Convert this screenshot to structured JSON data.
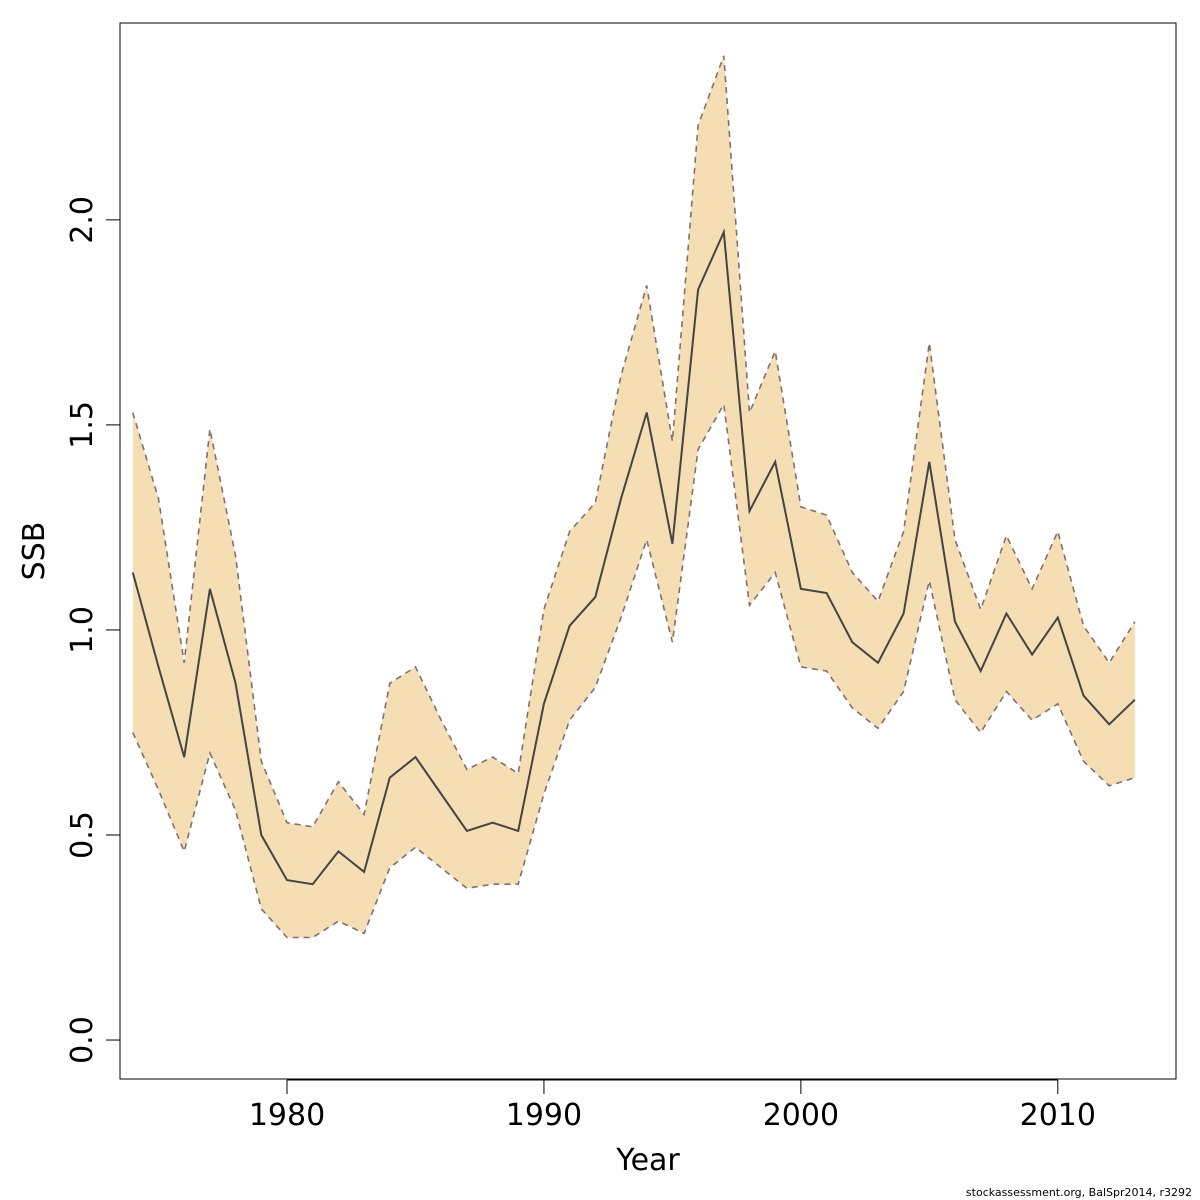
{
  "chart_data": {
    "type": "line",
    "xlabel": "Year",
    "ylabel": "SSB",
    "xlim": [
      1973.5,
      2014.6
    ],
    "ylim": [
      -0.095,
      2.48
    ],
    "xticks": [
      1980,
      1990,
      2000,
      2010
    ],
    "yticks": [
      0.0,
      0.5,
      1.0,
      1.5,
      2.0
    ],
    "ytick_labels": [
      "0.0",
      "0.5",
      "1.0",
      "1.5",
      "2.0"
    ],
    "grid": false,
    "legend": "none",
    "band_color": "#f5deb3",
    "line_color": "#444444",
    "bound_color": "#807070",
    "x": [
      1974,
      1975,
      1976,
      1977,
      1978,
      1979,
      1980,
      1981,
      1982,
      1983,
      1984,
      1985,
      1986,
      1987,
      1988,
      1989,
      1990,
      1991,
      1992,
      1993,
      1994,
      1995,
      1996,
      1997,
      1998,
      1999,
      2000,
      2001,
      2002,
      2003,
      2004,
      2005,
      2006,
      2007,
      2008,
      2009,
      2010,
      2011,
      2012,
      2013
    ],
    "series": [
      {
        "role": "estimate",
        "values": [
          1.14,
          0.91,
          0.69,
          1.1,
          0.87,
          0.5,
          0.39,
          0.38,
          0.46,
          0.41,
          0.64,
          0.69,
          0.6,
          0.51,
          0.53,
          0.51,
          0.82,
          1.01,
          1.08,
          1.32,
          1.53,
          1.21,
          1.83,
          1.97,
          1.29,
          1.41,
          1.1,
          1.09,
          0.97,
          0.92,
          1.04,
          1.41,
          1.02,
          0.9,
          1.04,
          0.94,
          1.03,
          0.84,
          0.77,
          0.83
        ]
      },
      {
        "role": "upper",
        "values": [
          1.53,
          1.32,
          0.92,
          1.49,
          1.18,
          0.68,
          0.53,
          0.52,
          0.63,
          0.55,
          0.87,
          0.91,
          0.78,
          0.66,
          0.69,
          0.65,
          1.05,
          1.24,
          1.31,
          1.62,
          1.84,
          1.46,
          2.23,
          2.4,
          1.53,
          1.68,
          1.3,
          1.28,
          1.14,
          1.07,
          1.24,
          1.7,
          1.22,
          1.05,
          1.23,
          1.1,
          1.24,
          1.01,
          0.92,
          1.02
        ]
      },
      {
        "role": "lower",
        "values": [
          0.75,
          0.61,
          0.46,
          0.7,
          0.56,
          0.32,
          0.25,
          0.25,
          0.29,
          0.26,
          0.42,
          0.47,
          0.42,
          0.37,
          0.38,
          0.38,
          0.6,
          0.78,
          0.86,
          1.03,
          1.22,
          0.97,
          1.44,
          1.55,
          1.06,
          1.14,
          0.91,
          0.9,
          0.81,
          0.76,
          0.85,
          1.12,
          0.83,
          0.75,
          0.85,
          0.78,
          0.82,
          0.68,
          0.62,
          0.64
        ]
      }
    ]
  },
  "footnote": "stockassessment.org, BalSpr2014, r3292"
}
